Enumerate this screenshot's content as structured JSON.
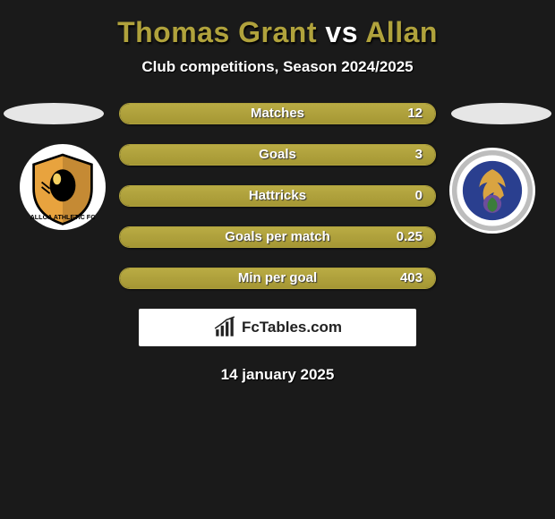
{
  "title": {
    "player1": "Thomas Grant",
    "vs": "vs",
    "player2": "Allan"
  },
  "subtitle": "Club competitions, Season 2024/2025",
  "date": "14 january 2025",
  "brand": "FcTables.com",
  "colors": {
    "bar_fill": "#b0a23c",
    "bar_border": "#b0a23c",
    "background": "#1a1a1a",
    "ellipse": "#e6e6e6",
    "title_accent": "#b0a23c",
    "text": "#ffffff"
  },
  "stats": [
    {
      "label": "Matches",
      "value": "12",
      "fill_pct": 100
    },
    {
      "label": "Goals",
      "value": "3",
      "fill_pct": 100
    },
    {
      "label": "Hattricks",
      "value": "0",
      "fill_pct": 100
    },
    {
      "label": "Goals per match",
      "value": "0.25",
      "fill_pct": 100
    },
    {
      "label": "Min per goal",
      "value": "403",
      "fill_pct": 100
    }
  ],
  "crests": {
    "left": {
      "name": "Alloa Athletic FC",
      "bg": "#ffffff",
      "shield": "#e8a33e",
      "outline": "#000000"
    },
    "right": {
      "name": "Inverness Caledonian",
      "bg": "#ffffff",
      "ring": "#c9c9c9",
      "inner": "#2a3f8f",
      "bird": "#d9a441"
    }
  }
}
